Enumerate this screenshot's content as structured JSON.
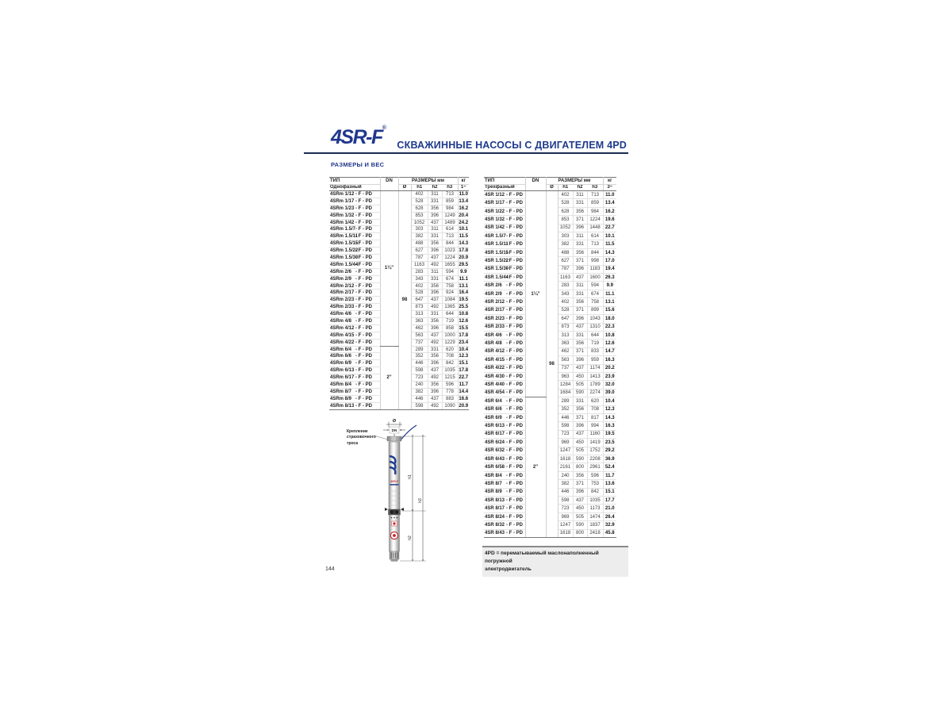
{
  "header": {
    "logo": "4SR-F",
    "logo_mark": "®",
    "title": "СКВАЖИННЫЕ НАСОСЫ С ДВИГАТЕЛЕМ 4PD",
    "section": "РАЗМЕРЫ И ВЕС"
  },
  "page_number": "144",
  "footnote": "4PD = перематываемый маслонаполненный погружной\nэлектродвигатель",
  "diagram": {
    "rope_label": "Крепление\nстраховочного\nтроса",
    "brand": "4SR-F",
    "dims": {
      "dia": "Ø",
      "dn": "DN",
      "h1": "h1",
      "h2": "h2",
      "h3": "h3"
    }
  },
  "tables": [
    {
      "headers": {
        "type": "ТИП",
        "phase": "Однофазный",
        "dn": "DN",
        "sizes": "РАЗМЕРЫ мм",
        "kg": "кг",
        "dia": "Ø",
        "h1": "h1",
        "h2": "h2",
        "h3": "h3",
        "phase_sym": "1~"
      },
      "suffix": "- F - PD",
      "diameter": "98",
      "dn_groups": [
        {
          "label": "1¼”",
          "start": 0,
          "span": 22
        },
        {
          "label": "2”",
          "start": 22,
          "span": 9
        }
      ],
      "group_starts": [
        5,
        11,
        17,
        22,
        27
      ],
      "rows": [
        [
          "4SRm 1/12",
          "402",
          "311",
          "713",
          "11.0"
        ],
        [
          "4SRm 1/17",
          "528",
          "331",
          "859",
          "13.4"
        ],
        [
          "4SRm 1/23",
          "628",
          "356",
          "984",
          "16.2"
        ],
        [
          "4SRm 1/32",
          "853",
          "396",
          "1249",
          "20.4"
        ],
        [
          "4SRm 1/42",
          "1052",
          "437",
          "1489",
          "24.2"
        ],
        [
          "4SRm 1.5/7",
          "303",
          "311",
          "614",
          "10.1"
        ],
        [
          "4SRm 1.5/11",
          "382",
          "331",
          "713",
          "11.5"
        ],
        [
          "4SRm 1.5/15",
          "488",
          "356",
          "844",
          "14.3"
        ],
        [
          "4SRm 1.5/22",
          "627",
          "396",
          "1023",
          "17.8"
        ],
        [
          "4SRm 1.5/30",
          "787",
          "437",
          "1224",
          "20.9"
        ],
        [
          "4SRm 1.5/44",
          "1163",
          "492",
          "1655",
          "29.5"
        ],
        [
          "4SRm 2/6",
          "283",
          "311",
          "594",
          "9.9"
        ],
        [
          "4SRm 2/9",
          "343",
          "331",
          "674",
          "11.1"
        ],
        [
          "4SRm 2/12",
          "402",
          "356",
          "758",
          "13.1"
        ],
        [
          "4SRm 2/17",
          "528",
          "396",
          "924",
          "16.4"
        ],
        [
          "4SRm 2/23",
          "647",
          "437",
          "1084",
          "19.5"
        ],
        [
          "4SRm 2/33",
          "873",
          "492",
          "1365",
          "25.5"
        ],
        [
          "4SRm 4/6",
          "313",
          "331",
          "644",
          "10.8"
        ],
        [
          "4SRm 4/8",
          "363",
          "356",
          "719",
          "12.6"
        ],
        [
          "4SRm 4/12",
          "462",
          "396",
          "858",
          "15.5"
        ],
        [
          "4SRm 4/15",
          "563",
          "437",
          "1000",
          "17.8"
        ],
        [
          "4SRm 4/22",
          "737",
          "492",
          "1229",
          "23.4"
        ],
        [
          "4SRm 6/4",
          "289",
          "331",
          "620",
          "10.4"
        ],
        [
          "4SRm 6/6",
          "352",
          "356",
          "708",
          "12.3"
        ],
        [
          "4SRm 6/9",
          "446",
          "396",
          "842",
          "15.1"
        ],
        [
          "4SRm 6/13",
          "598",
          "437",
          "1035",
          "17.8"
        ],
        [
          "4SRm 6/17",
          "723",
          "492",
          "1215",
          "22.7"
        ],
        [
          "4SRm 8/4",
          "240",
          "356",
          "596",
          "11.7"
        ],
        [
          "4SRm 8/7",
          "382",
          "396",
          "778",
          "14.4"
        ],
        [
          "4SRm 8/9",
          "446",
          "437",
          "883",
          "16.6"
        ],
        [
          "4SRm 8/13",
          "598",
          "492",
          "1090",
          "20.9"
        ]
      ]
    },
    {
      "headers": {
        "type": "ТИП",
        "phase": "Трехфазный",
        "dn": "DN",
        "sizes": "РАЗМЕРЫ мм",
        "kg": "кг",
        "dia": "Ø",
        "h1": "h1",
        "h2": "h2",
        "h3": "h3",
        "phase_sym": "3~"
      },
      "suffix": "- F - PD",
      "diameter": "98",
      "dn_groups": [
        {
          "label": "1¼”",
          "start": 0,
          "span": 25
        },
        {
          "label": "2”",
          "start": 25,
          "span": 17
        }
      ],
      "group_starts": [
        5,
        11,
        17,
        25,
        34
      ],
      "rows": [
        [
          "4SR 1/12",
          "402",
          "311",
          "713",
          "11.0"
        ],
        [
          "4SR 1/17",
          "528",
          "331",
          "859",
          "13.4"
        ],
        [
          "4SR 1/22",
          "628",
          "356",
          "984",
          "16.2"
        ],
        [
          "4SR 1/32",
          "853",
          "371",
          "1224",
          "19.6"
        ],
        [
          "4SR 1/42",
          "1052",
          "396",
          "1448",
          "22.7"
        ],
        [
          "4SR 1.5/7",
          "303",
          "311",
          "614",
          "10.1"
        ],
        [
          "4SR 1.5/11",
          "382",
          "331",
          "713",
          "11.5"
        ],
        [
          "4SR 1.5/15",
          "488",
          "356",
          "844",
          "14.3"
        ],
        [
          "4SR 1.5/22",
          "627",
          "371",
          "998",
          "17.0"
        ],
        [
          "4SR 1.5/30",
          "787",
          "396",
          "1183",
          "19.4"
        ],
        [
          "4SR 1.5/44",
          "1163",
          "437",
          "1600",
          "26.3"
        ],
        [
          "4SR 2/6",
          "283",
          "311",
          "594",
          "9.9"
        ],
        [
          "4SR 2/9",
          "343",
          "331",
          "674",
          "11.1"
        ],
        [
          "4SR 2/12",
          "402",
          "356",
          "758",
          "13.1"
        ],
        [
          "4SR 2/17",
          "528",
          "371",
          "899",
          "15.6"
        ],
        [
          "4SR 2/23",
          "647",
          "396",
          "1043",
          "18.0"
        ],
        [
          "4SR 2/33",
          "873",
          "437",
          "1310",
          "22.3"
        ],
        [
          "4SR 4/6",
          "313",
          "331",
          "644",
          "10.8"
        ],
        [
          "4SR 4/8",
          "363",
          "356",
          "719",
          "12.6"
        ],
        [
          "4SR 4/12",
          "462",
          "371",
          "833",
          "14.7"
        ],
        [
          "4SR 4/15",
          "563",
          "396",
          "959",
          "16.3"
        ],
        [
          "4SR 4/22",
          "737",
          "437",
          "1174",
          "20.2"
        ],
        [
          "4SR 4/30",
          "963",
          "450",
          "1413",
          "23.9"
        ],
        [
          "4SR 4/40",
          "1284",
          "505",
          "1789",
          "32.0"
        ],
        [
          "4SR 4/54",
          "1684",
          "590",
          "2274",
          "39.0"
        ],
        [
          "4SR 6/4",
          "289",
          "331",
          "620",
          "10.4"
        ],
        [
          "4SR 6/6",
          "352",
          "356",
          "708",
          "12.3"
        ],
        [
          "4SR 6/9",
          "446",
          "371",
          "817",
          "14.3"
        ],
        [
          "4SR 6/13",
          "598",
          "396",
          "994",
          "16.3"
        ],
        [
          "4SR 6/17",
          "723",
          "437",
          "1160",
          "19.5"
        ],
        [
          "4SR 6/24",
          "969",
          "450",
          "1419",
          "23.5"
        ],
        [
          "4SR 6/32",
          "1247",
          "505",
          "1752",
          "29.2"
        ],
        [
          "4SR 6/43",
          "1618",
          "590",
          "2208",
          "36.9"
        ],
        [
          "4SR 6/58",
          "2161",
          "800",
          "2961",
          "52.4"
        ],
        [
          "4SR 8/4",
          "240",
          "356",
          "596",
          "11.7"
        ],
        [
          "4SR 8/7",
          "382",
          "371",
          "753",
          "13.6"
        ],
        [
          "4SR 8/9",
          "446",
          "396",
          "842",
          "15.1"
        ],
        [
          "4SR 8/13",
          "598",
          "437",
          "1035",
          "17.7"
        ],
        [
          "4SR 8/17",
          "723",
          "450",
          "1173",
          "21.0"
        ],
        [
          "4SR 8/24",
          "969",
          "505",
          "1474",
          "26.4"
        ],
        [
          "4SR 8/32",
          "1247",
          "590",
          "1837",
          "32.9"
        ],
        [
          "4SR 8/43",
          "1618",
          "800",
          "2418",
          "45.8"
        ]
      ]
    }
  ]
}
